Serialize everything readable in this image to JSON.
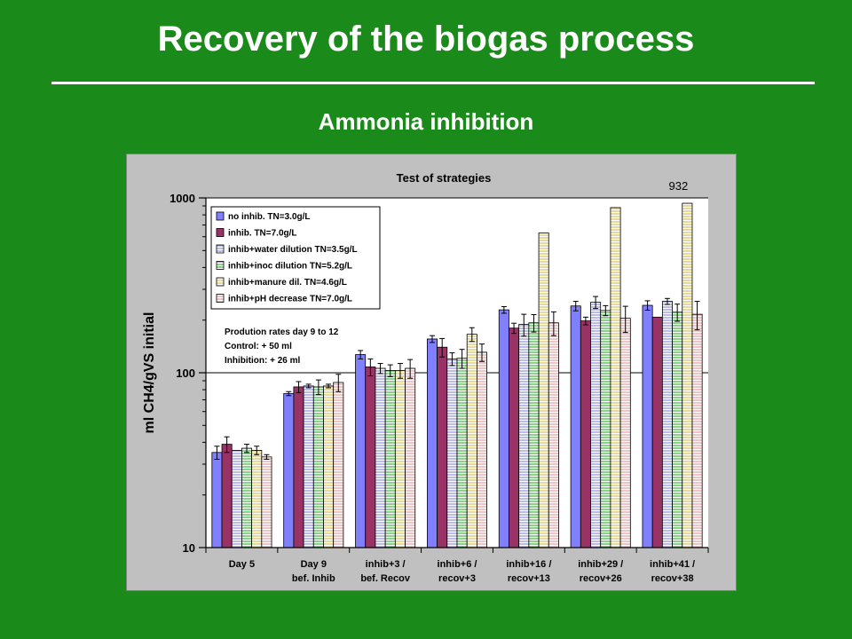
{
  "slide": {
    "title": "Recovery of the biogas process",
    "subtitle": "Ammonia inhibition"
  },
  "colors": {
    "background": "#1a8a1a",
    "chart_panel": "#c0c0c0",
    "plot_area": "#ffffff"
  },
  "chart_data": {
    "type": "bar",
    "title": "Test of strategies",
    "ylabel": "ml CH4/gVS initial",
    "xlabel": "",
    "y_scale": "log",
    "ylim": [
      10,
      1000
    ],
    "y_ticks": [
      {
        "value": 10,
        "label": "10"
      },
      {
        "value": 100,
        "label": "100"
      },
      {
        "value": 1000,
        "label": "1000"
      }
    ],
    "gridlines": [
      100,
      1000
    ],
    "legend_position": "top-left",
    "categories": [
      [
        "Day 5"
      ],
      [
        "Day 9",
        "bef. Inhib"
      ],
      [
        "inhib+3 /",
        "bef. Recov"
      ],
      [
        "inhib+6 /",
        "recov+3"
      ],
      [
        "inhib+16 /",
        "recov+13"
      ],
      [
        "inhib+29 /",
        "recov+26"
      ],
      [
        "inhib+41 /",
        "recov+38"
      ]
    ],
    "series": [
      {
        "name": "no inhib. TN=3.0g/L",
        "color": "#8080ff",
        "pattern": "solid",
        "values": [
          35,
          76,
          127,
          156,
          229,
          241,
          243
        ],
        "errors": [
          3,
          2,
          7,
          7,
          10,
          15,
          15
        ]
      },
      {
        "name": "inhib. TN=7.0g/L",
        "color": "#993366",
        "pattern": "solid",
        "values": [
          39,
          83,
          108,
          140,
          180,
          198,
          208
        ],
        "errors": [
          4,
          6,
          12,
          17,
          12,
          10,
          0
        ]
      },
      {
        "name": "inhib+water dilution TN=3.5g/L",
        "color": "#9090d8",
        "pattern": "horizontal-lines",
        "values": [
          36,
          84,
          106,
          120,
          189,
          253,
          256
        ],
        "errors": [
          0,
          2,
          7,
          10,
          27,
          20,
          10
        ]
      },
      {
        "name": "inhib+inoc dilution TN=5.2g/L",
        "color": "#40b040",
        "pattern": "horizontal-lines",
        "values": [
          37,
          83,
          103,
          121,
          193,
          227,
          222
        ],
        "errors": [
          2,
          8,
          8,
          15,
          22,
          15,
          25
        ]
      },
      {
        "name": "inhib+manure dil. TN=4.6g/L",
        "color": "#d4c060",
        "pattern": "horizontal-lines",
        "values": [
          36,
          84,
          103,
          166,
          630,
          880,
          932
        ],
        "errors": [
          2,
          2,
          10,
          15,
          0,
          0,
          0
        ]
      },
      {
        "name": "inhib+pH decrease TN=7.0g/L",
        "color": "#e0a0a0",
        "pattern": "horizontal-lines",
        "values": [
          33,
          88,
          106,
          131,
          193,
          205,
          216
        ],
        "errors": [
          1,
          10,
          13,
          15,
          30,
          35,
          40
        ]
      }
    ],
    "annotations": [
      {
        "text": "932",
        "series": 4,
        "category": 6
      },
      {
        "text": "Prodution rates day 9 to 12"
      },
      {
        "text": "Control:  + 50 ml"
      },
      {
        "text": "Inhibition: + 26 ml"
      }
    ]
  }
}
